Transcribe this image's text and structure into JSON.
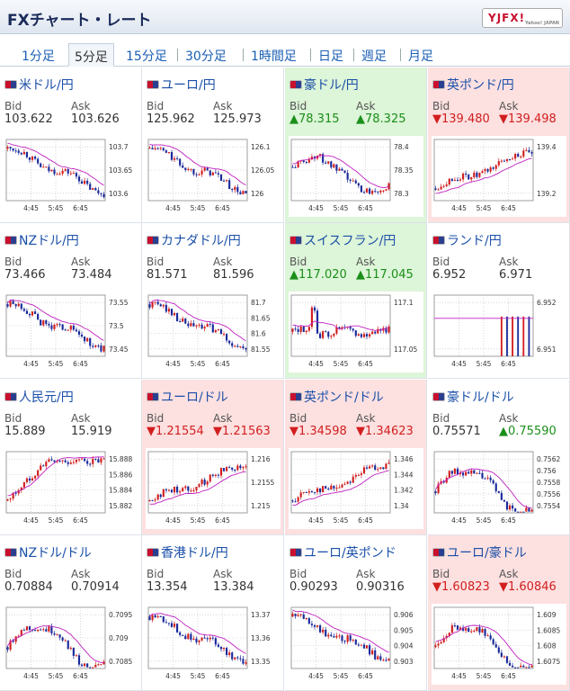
{
  "header": {
    "title": "FXチャート・レート",
    "logo": "YJFX!",
    "logo_sub": "Yahoo! JAPAN"
  },
  "tabs": [
    {
      "label": "1分足",
      "active": false
    },
    {
      "label": "5分足",
      "active": true
    },
    {
      "label": "15分足",
      "active": false
    },
    {
      "label": "30分足",
      "active": false
    },
    {
      "label": "1時間足",
      "active": false
    },
    {
      "label": "日足",
      "active": false
    },
    {
      "label": "週足",
      "active": false
    },
    {
      "label": "月足",
      "active": false
    }
  ],
  "labels": {
    "bid": "Bid",
    "ask": "Ask"
  },
  "x_ticks": [
    "4:45",
    "5:45",
    "6:45"
  ],
  "pairs": [
    {
      "name": "米ドル/円",
      "bid": "103.622",
      "ask": "103.626",
      "trend": "none",
      "bid_dir": "",
      "ask_dir": "",
      "y_ticks": [
        "103.7",
        "103.65",
        "103.6"
      ],
      "path": "down",
      "ma": "down"
    },
    {
      "name": "ユーロ/円",
      "bid": "125.962",
      "ask": "125.973",
      "trend": "none",
      "bid_dir": "",
      "ask_dir": "",
      "y_ticks": [
        "126.1",
        "126.05",
        "126"
      ],
      "path": "down",
      "ma": "down"
    },
    {
      "name": "豪ドル/円",
      "bid": "78.315",
      "ask": "78.325",
      "trend": "up",
      "bid_dir": "▲",
      "ask_dir": "▲",
      "y_ticks": [
        "78.4",
        "78.35",
        "78.3"
      ],
      "path": "dip",
      "ma": "down"
    },
    {
      "name": "英ポンド/円",
      "bid": "139.480",
      "ask": "139.498",
      "trend": "down",
      "bid_dir": "▼",
      "ask_dir": "▼",
      "y_ticks": [
        "139.4",
        "139.2"
      ],
      "path": "up",
      "ma": "up"
    },
    {
      "name": "NZドル/円",
      "bid": "73.466",
      "ask": "73.484",
      "trend": "none",
      "bid_dir": "",
      "ask_dir": "",
      "y_ticks": [
        "73.55",
        "73.5",
        "73.45"
      ],
      "path": "down",
      "ma": "down"
    },
    {
      "name": "カナダドル/円",
      "bid": "81.571",
      "ask": "81.596",
      "trend": "none",
      "bid_dir": "",
      "ask_dir": "",
      "y_ticks": [
        "81.7",
        "81.65",
        "81.6",
        "81.55"
      ],
      "path": "down",
      "ma": "down"
    },
    {
      "name": "スイスフラン/円",
      "bid": "117.020",
      "ask": "117.045",
      "trend": "up",
      "bid_dir": "▲",
      "ask_dir": "▲",
      "y_ticks": [
        "117.1",
        "117.05"
      ],
      "path": "spike",
      "ma": "flat"
    },
    {
      "name": "ランド/円",
      "bid": "6.952",
      "ask": "6.971",
      "trend": "none",
      "bid_dir": "",
      "ask_dir": "",
      "y_ticks": [
        "6.952",
        "6.951"
      ],
      "path": "bars",
      "ma": "flat"
    },
    {
      "name": "人民元/円",
      "bid": "15.889",
      "ask": "15.919",
      "trend": "none",
      "bid_dir": "",
      "ask_dir": "",
      "y_ticks": [
        "15.888",
        "15.886",
        "15.884",
        "15.882"
      ],
      "path": "rise",
      "ma": "rise"
    },
    {
      "name": "ユーロ/ドル",
      "bid": "1.21554",
      "ask": "1.21563",
      "trend": "down",
      "bid_dir": "▼",
      "ask_dir": "▼",
      "y_ticks": [
        "1.216",
        "1.2155",
        "1.215"
      ],
      "path": "up",
      "ma": "up"
    },
    {
      "name": "英ポンド/ドル",
      "bid": "1.34598",
      "ask": "1.34623",
      "trend": "down",
      "bid_dir": "▼",
      "ask_dir": "▼",
      "y_ticks": [
        "1.346",
        "1.344",
        "1.342",
        "1.34"
      ],
      "path": "up",
      "ma": "up"
    },
    {
      "name": "豪ドル/ドル",
      "bid": "0.75571",
      "ask": "0.75590",
      "trend": "none",
      "bid_dir": "",
      "ask_dir": "▲",
      "y_ticks": [
        "0.7562",
        "0.756",
        "0.7558",
        "0.7556",
        "0.7554"
      ],
      "path": "hump",
      "ma": "flat"
    },
    {
      "name": "NZドル/ドル",
      "bid": "0.70884",
      "ask": "0.70914",
      "trend": "none",
      "bid_dir": "",
      "ask_dir": "",
      "y_ticks": [
        "0.7095",
        "0.709",
        "0.7085"
      ],
      "path": "hump",
      "ma": "flat"
    },
    {
      "name": "香港ドル/円",
      "bid": "13.354",
      "ask": "13.384",
      "trend": "none",
      "bid_dir": "",
      "ask_dir": "",
      "y_ticks": [
        "13.37",
        "13.36",
        "13.35"
      ],
      "path": "down",
      "ma": "down"
    },
    {
      "name": "ユーロ/英ポンド",
      "bid": "0.90293",
      "ask": "0.90316",
      "trend": "none",
      "bid_dir": "",
      "ask_dir": "",
      "y_ticks": [
        "0.906",
        "0.905",
        "0.904",
        "0.903"
      ],
      "path": "down",
      "ma": "down"
    },
    {
      "name": "ユーロ/豪ドル",
      "bid": "1.60823",
      "ask": "1.60846",
      "trend": "down",
      "bid_dir": "▼",
      "ask_dir": "▼",
      "y_ticks": [
        "1.609",
        "1.6085",
        "1.608",
        "1.6075"
      ],
      "path": "hump",
      "ma": "flat"
    }
  ],
  "colors": {
    "bull": "#d21e1e",
    "bear": "#1a2a9a",
    "ma": "#c020c0",
    "up_bg": "#ddf5d8",
    "down_bg": "#fde0e0"
  }
}
